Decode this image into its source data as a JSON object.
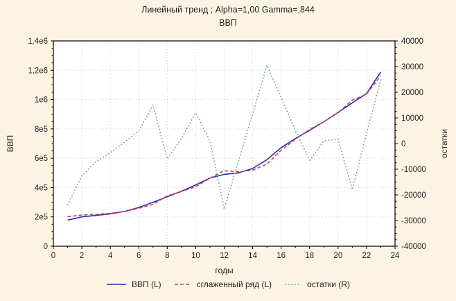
{
  "colors": {
    "background": "#fcf4e2",
    "plot_background": "#ffffff",
    "frame": "#000000",
    "grid": "#cfcfcf",
    "text": "#1f1f1f",
    "series_gdp": "#2a2ab8",
    "series_smoothed": "#cc4444",
    "series_residuals": "#76a888"
  },
  "chart_data": {
    "type": "line",
    "title": "Линейный тренд ; Alpha=1,00 Gamma=,844",
    "subtitle": "ВВП",
    "xlabel": "годы",
    "ylabel_left": "ВВП",
    "ylabel_right": "остатки",
    "grid": true,
    "legend_position": "bottom",
    "x_range": [
      0,
      24
    ],
    "y_left_range": [
      0,
      1400000
    ],
    "y_right_range": [
      -40000,
      40000
    ],
    "x_ticks": [
      "0",
      "2",
      "4",
      "6",
      "8",
      "10",
      "12",
      "14",
      "16",
      "18",
      "20",
      "22",
      "24"
    ],
    "y_left_ticks": [
      {
        "v": 0,
        "label": "0"
      },
      {
        "v": 200000,
        "label": "2e5"
      },
      {
        "v": 400000,
        "label": "4e5"
      },
      {
        "v": 600000,
        "label": "6e5"
      },
      {
        "v": 800000,
        "label": "8e5"
      },
      {
        "v": 1000000,
        "label": "1e6"
      },
      {
        "v": 1200000,
        "label": "1,2e6"
      },
      {
        "v": 1400000,
        "label": "1,4e6"
      }
    ],
    "y_right_ticks": [
      {
        "v": -40000,
        "label": "-40000"
      },
      {
        "v": -30000,
        "label": "-30000"
      },
      {
        "v": -20000,
        "label": "-20000"
      },
      {
        "v": -10000,
        "label": "-10000"
      },
      {
        "v": 0,
        "label": "0"
      },
      {
        "v": 10000,
        "label": "10000"
      },
      {
        "v": 20000,
        "label": "20000"
      },
      {
        "v": 30000,
        "label": "30000"
      },
      {
        "v": 40000,
        "label": "40000"
      }
    ],
    "x": [
      1,
      2,
      3,
      4,
      5,
      6,
      7,
      8,
      9,
      10,
      11,
      12,
      13,
      14,
      15,
      16,
      17,
      18,
      19,
      20,
      21,
      22,
      23
    ],
    "series": [
      {
        "name": "ВВП (L)",
        "axis": "left",
        "style": "solid",
        "color_key": "series_gdp",
        "values": [
          178000,
          200000,
          210000,
          221000,
          237000,
          264000,
          300000,
          337000,
          375000,
          418000,
          465000,
          490000,
          500000,
          530000,
          590000,
          672000,
          734000,
          790000,
          849000,
          912000,
          978000,
          1041000,
          1188000
        ]
      },
      {
        "name": "сглаженный ряд (L)",
        "axis": "left",
        "style": "dashed",
        "color_key": "series_smoothed",
        "values": [
          202000,
          212500,
          217000,
          224500,
          236500,
          259000,
          285000,
          343000,
          373000,
          406000,
          464000,
          515500,
          507000,
          518500,
          559500,
          654000,
          729000,
          796500,
          848000,
          910200,
          996000,
          1037000,
          1163000
        ]
      },
      {
        "name": "остатки (R)",
        "axis": "right",
        "style": "dotted",
        "color_key": "series_residuals",
        "values": [
          -24000,
          -12500,
          -7000,
          -3500,
          500,
          5000,
          15000,
          -6000,
          2000,
          12000,
          1000,
          -25500,
          -7000,
          11500,
          30500,
          18000,
          5000,
          -6500,
          1000,
          1800,
          -18000,
          4000,
          25000
        ]
      }
    ]
  }
}
